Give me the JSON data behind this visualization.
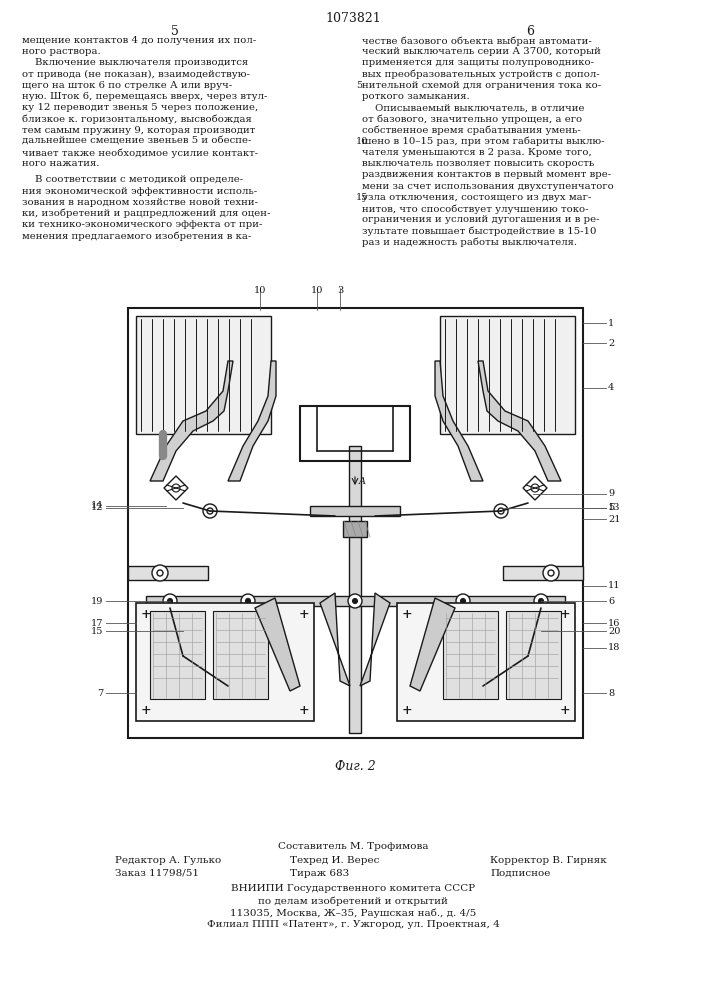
{
  "page_number": "1073821",
  "col_left_number": "5",
  "col_right_number": "6",
  "col_left_text": [
    "мещение контактов 4 до получения их пол-",
    "ного раствора.",
    "    Включение выключателя производится",
    "от привода (не показан), взаимодействую-",
    "щего на шток 6 по стрелке А или вруч-",
    "ную. Шток 6, перемещаясь вверх, через втул-",
    "ку 12 переводит звенья 5 через положение,",
    "близкое к. горизонтальному, высвобождая",
    "тем самым пружину 9, которая производит",
    "дальнейшее смещение звеньев 5 и обеспе-",
    "чивает также необходимое усилие контакт-",
    "ного нажатия."
  ],
  "col_left_text2": [
    "    В соответствии с методикой определе-",
    "ния экономической эффективности исполь-",
    "зования в народном хозяйстве новой техни-",
    "ки, изобретений и рацпредложений для оцен-",
    "ки технико-экономического эффекта от при-",
    "менения предлагаемого изобретения в ка-"
  ],
  "col_right_text": [
    "честве базового объекта выбран автомати-",
    "ческий выключатель серии А 3700, который",
    "применяется для защиты полупроводнико-",
    "вых преобразовательных устройств с допол-",
    "нительной схемой для ограничения тока ко-",
    "роткого замыкания.",
    "    Описываемый выключатель, в отличие",
    "от базового, значительно упрощен, а его",
    "собственное время срабатывания умень-",
    "шено в 10–15 раз, при этом габариты выклю-",
    "чателя уменьшаются в 2 раза. Кроме того,",
    "выключатель позволяет повысить скорость",
    "раздвижения контактов в первый момент вре-",
    "мени за счет использования двухступенчатого",
    "узла отключения, состоящего из двух маг-",
    "нитов, что способствует улучшению токо-",
    "ограничения и условий дугогашения и в ре-",
    "зультате повышает быстродействие в 15-10",
    "раз и надежность работы выключателя."
  ],
  "fig_caption": "Фиг. 2",
  "footer_composer": "Составитель М. Трофимова",
  "footer_editor": "Редактор А. Гулько",
  "footer_techred": "Техред И. Верес",
  "footer_corrector": "Корректор В. Гирняк",
  "footer_order": "Заказ 11798/51",
  "footer_print": "Тираж 683",
  "footer_subtype": "Подписное",
  "footer_org": "ВНИИПИ Государственного комитета СССР",
  "footer_dept": "по делам изобретений и открытий",
  "footer_addr": "113035, Москва, Ж–35, Раушская наб., д. 4/5",
  "footer_branch": "Филиал ППП «Патент», г. Ужгород, ул. Проектная, 4",
  "bg_color": "#ffffff",
  "text_color": "#1a1a1a",
  "diagram_color": "#1a1a1a"
}
